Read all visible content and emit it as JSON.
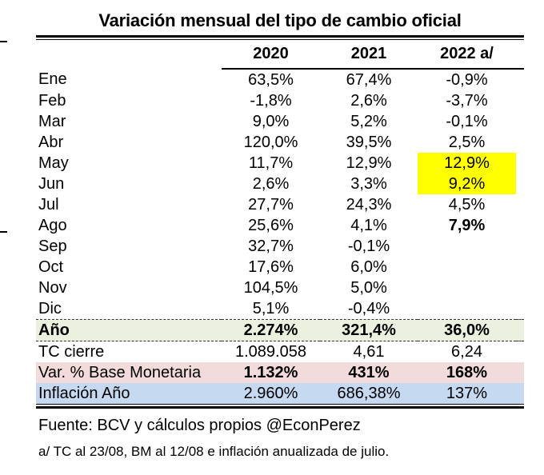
{
  "title": "Variación mensual del tipo de cambio oficial",
  "chart_data": {
    "type": "table",
    "title": "Variación mensual del tipo de cambio oficial",
    "columns": [
      "",
      "2020",
      "2021",
      "2022 a/"
    ],
    "rows": [
      [
        "Ene",
        "63,5%",
        "67,4%",
        "-0,9%"
      ],
      [
        "Feb",
        "-1,8%",
        "2,6%",
        "-3,7%"
      ],
      [
        "Mar",
        "9,0%",
        "5,2%",
        "-0,1%"
      ],
      [
        "Abr",
        "120,0%",
        "39,5%",
        "2,5%"
      ],
      [
        "May",
        "11,7%",
        "12,9%",
        "12,9%"
      ],
      [
        "Jun",
        "2,6%",
        "3,3%",
        "9,2%"
      ],
      [
        "Jul",
        "27,7%",
        "24,3%",
        "4,5%"
      ],
      [
        "Ago",
        "25,6%",
        "4,1%",
        "7,9%"
      ],
      [
        "Sep",
        "32,7%",
        "-0,1%",
        ""
      ],
      [
        "Oct",
        "17,6%",
        "6,0%",
        ""
      ],
      [
        "Nov",
        "104,5%",
        "5,0%",
        ""
      ],
      [
        "Dic",
        "5,1%",
        "-0,4%",
        ""
      ],
      [
        "Año",
        "2.274%",
        "321,4%",
        "36,0%"
      ],
      [
        "TC cierre",
        "1.089.058",
        "4,61",
        "6,24"
      ],
      [
        "Var. % Base Monetaria",
        "1.132%",
        "431%",
        "168%"
      ],
      [
        "Inflación Año",
        "2.960%",
        "686,38%",
        "137%"
      ]
    ],
    "highlights": {
      "yellow_cells": [
        {
          "row": "May",
          "column": "2022 a/",
          "value": "12,9%"
        },
        {
          "row": "Jun",
          "column": "2022 a/",
          "value": "9,2%"
        }
      ],
      "bold_cells": [
        {
          "row": "Ago",
          "column": "2022 a/",
          "value": "7,9%"
        }
      ],
      "bold_rows": [
        "Año"
      ],
      "bold_value_rows": [
        "Var. % Base Monetaria"
      ]
    },
    "layout_hints": {
      "value_alignment": "center",
      "double_rule_top": true,
      "double_rule_bottom": true,
      "dashed_rule_around_row": "Año"
    }
  },
  "footer": {
    "source": "Fuente: BCV y cálculos propios @EconPerez",
    "footnote": "a/ TC al 23/08, BM al 12/08 e inflación anualizada de julio."
  },
  "colors": {
    "accent_highlight": "#ffff00",
    "anio_row_bg": "#ebf1de",
    "base_monetaria_row_bg": "#f2dcdb",
    "inflacion_row_bg": "#c5d9f1"
  }
}
